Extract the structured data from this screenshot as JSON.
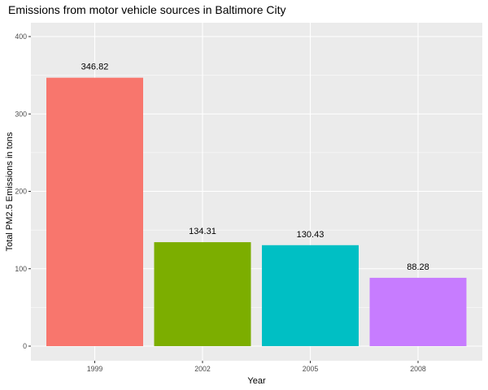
{
  "chart_data": {
    "type": "bar",
    "title": "Emissions from motor vehicle sources in Baltimore City",
    "xlabel": "Year",
    "ylabel": "Total PM2.5 Emissions in tons",
    "categories": [
      "1999",
      "2002",
      "2005",
      "2008"
    ],
    "values": [
      346.82,
      134.31,
      130.43,
      88.28
    ],
    "data_labels": [
      "346.82",
      "134.31",
      "130.43",
      "88.28"
    ],
    "colors": [
      "#F8766D",
      "#7CAE00",
      "#00BFC4",
      "#C77CFF"
    ],
    "ylim": [
      0,
      400
    ],
    "yticks": [
      0,
      100,
      200,
      300,
      400
    ],
    "ytick_labels": [
      "0",
      "100",
      "200",
      "300",
      "400"
    ],
    "grid": true,
    "legend": "none",
    "panel_background": "#EBEBEB",
    "grid_color": "#FFFFFF"
  }
}
